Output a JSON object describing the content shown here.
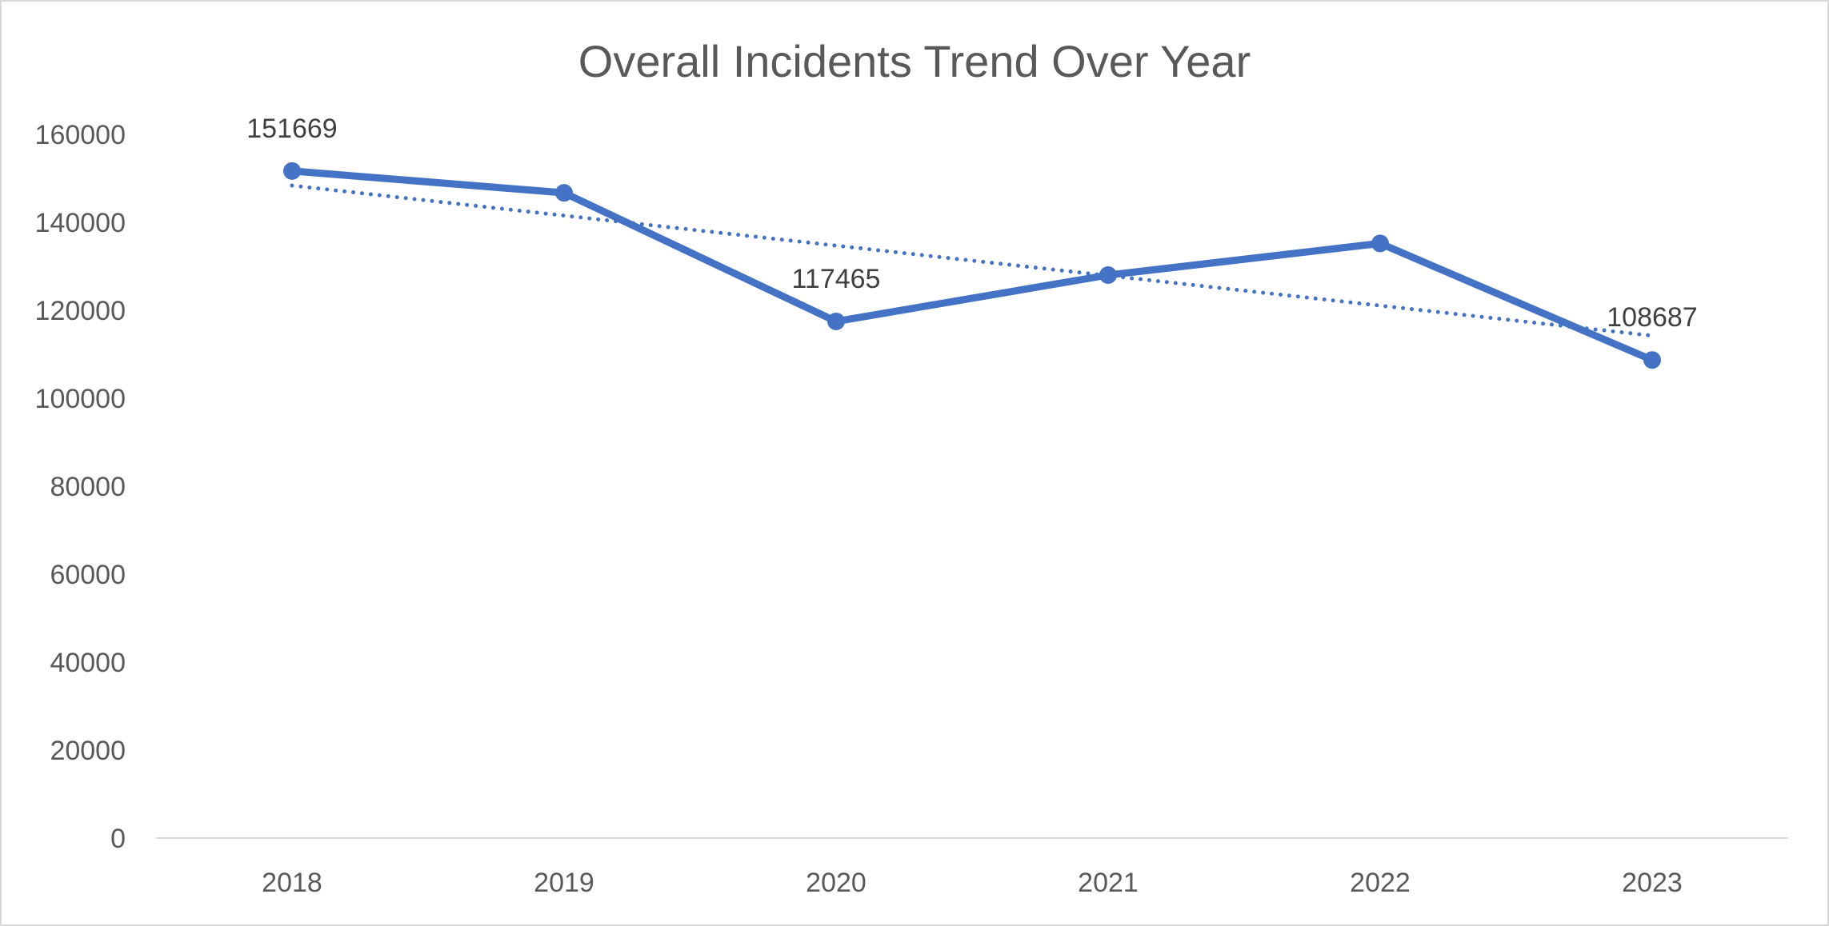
{
  "chart_data": {
    "type": "line",
    "title": "Overall Incidents Trend Over Year",
    "xlabel": "",
    "ylabel": "",
    "categories": [
      "2018",
      "2019",
      "2020",
      "2021",
      "2022",
      "2023"
    ],
    "series": [
      {
        "values": [
          151669,
          146700,
          117465,
          128000,
          135200,
          108687
        ],
        "color": "#4472c4",
        "marker": "circle",
        "data_labels": [
          "151669",
          "",
          "117465",
          "",
          "",
          "108687"
        ]
      }
    ],
    "trendline": {
      "type": "linear",
      "style": "dotted",
      "color": "#4472c4"
    },
    "ylim": [
      0,
      160000
    ],
    "yticks": [
      "0",
      "20000",
      "40000",
      "60000",
      "80000",
      "100000",
      "120000",
      "140000",
      "160000"
    ],
    "grid": false,
    "legend": "none"
  }
}
